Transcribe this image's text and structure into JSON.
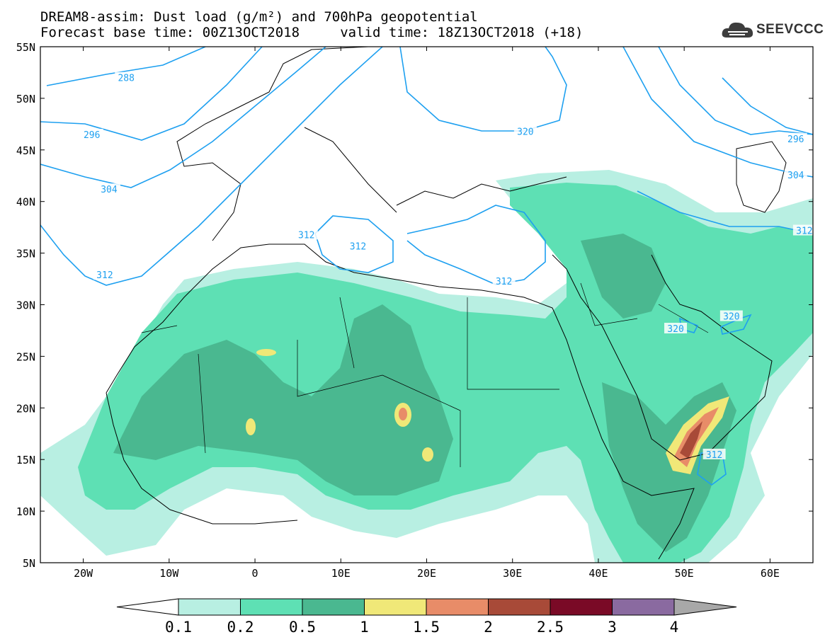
{
  "title": {
    "line1": "DREAM8-assim: Dust load (g/m²) and 700hPa geopotential",
    "line2": "Forecast base time: 00Z13OCT2018     valid time: 18Z13OCT2018 (+18)"
  },
  "logo": {
    "text": "SEEVCCC",
    "icon": "cloud-icon"
  },
  "map": {
    "lon_range": [
      -25,
      65
    ],
    "lat_range": [
      5,
      55
    ],
    "lat_labels": [
      "55N",
      "50N",
      "45N",
      "40N",
      "35N",
      "30N",
      "25N",
      "20N",
      "15N",
      "10N",
      "5N"
    ],
    "lon_labels": [
      "20W",
      "10W",
      "0",
      "10E",
      "20E",
      "30E",
      "40E",
      "50E",
      "60E"
    ],
    "contour_color": "#1ea0f0",
    "contour_labels": [
      {
        "text": "288",
        "lon": -15,
        "lat": 52
      },
      {
        "text": "296",
        "lon": -19,
        "lat": 46.5
      },
      {
        "text": "304",
        "lon": -17,
        "lat": 41.2
      },
      {
        "text": "312",
        "lon": -17.5,
        "lat": 32.9
      },
      {
        "text": "312",
        "lon": 6,
        "lat": 36.8
      },
      {
        "text": "312",
        "lon": 12,
        "lat": 35.7
      },
      {
        "text": "312",
        "lon": 29,
        "lat": 32.3
      },
      {
        "text": "320",
        "lon": 31.5,
        "lat": 46.8
      },
      {
        "text": "320",
        "lon": 49,
        "lat": 27.7
      },
      {
        "text": "320",
        "lon": 55.5,
        "lat": 28.9
      },
      {
        "text": "312",
        "lon": 53.5,
        "lat": 15.5
      },
      {
        "text": "296",
        "lon": 63,
        "lat": 46.1
      },
      {
        "text": "304",
        "lon": 63,
        "lat": 42.6
      },
      {
        "text": "312",
        "lon": 64,
        "lat": 37.2
      }
    ]
  },
  "colorbar": {
    "levels": [
      "0.1",
      "0.2",
      "0.5",
      "1",
      "1.5",
      "2",
      "2.5",
      "3",
      "4"
    ],
    "colors": [
      "#b8efe2",
      "#5ee0b4",
      "#4ab890",
      "#f0e878",
      "#e88c68",
      "#a84a38",
      "#7a0a26",
      "#8a6aa0"
    ],
    "under_color": "#ffffff",
    "over_color": "#a8a8a8"
  }
}
